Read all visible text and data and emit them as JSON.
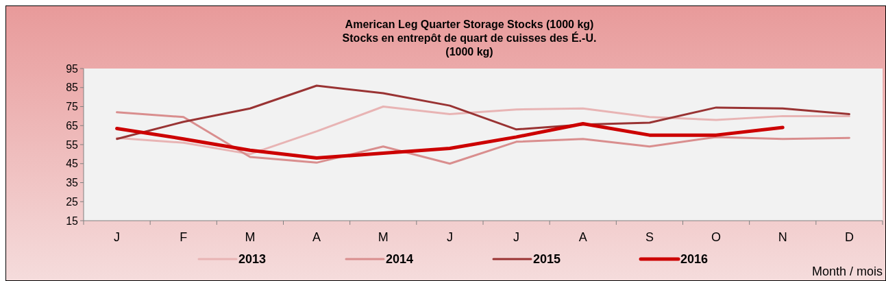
{
  "chart_data": {
    "type": "line",
    "title": "American Leg Quarter Storage Stocks (1000 kg)\nStocks en entrepôt de quart de cuisses des É.-U.\n(1000 kg)",
    "xlabel": "Month / mois",
    "categories": [
      "J",
      "F",
      "M",
      "A",
      "M",
      "J",
      "J",
      "A",
      "S",
      "O",
      "N",
      "D"
    ],
    "series": [
      {
        "name": "2013",
        "color": "#e8b4b4",
        "values": [
          58.5,
          56,
          50,
          62,
          75,
          71,
          73.5,
          74,
          69.5,
          68,
          70,
          70
        ]
      },
      {
        "name": "2014",
        "color": "#d98e8e",
        "values": [
          72,
          69.5,
          48.5,
          45.5,
          54,
          45,
          56.5,
          58,
          54,
          59,
          58,
          58.5
        ]
      },
      {
        "name": "2015",
        "color": "#993333",
        "values": [
          58,
          67,
          74,
          86,
          82,
          75.5,
          63,
          65.5,
          66.5,
          74.5,
          74,
          71
        ]
      },
      {
        "name": "2016",
        "color": "#cc0000",
        "values": [
          63.5,
          58,
          52,
          48,
          50.5,
          53,
          59,
          66,
          60,
          60,
          64,
          null
        ]
      }
    ],
    "ylim": [
      15,
      95
    ],
    "yticks": [
      15,
      25,
      35,
      45,
      55,
      65,
      75,
      85,
      95
    ],
    "grid": false,
    "legend": "bottom",
    "marker": "none",
    "line_style": "solid"
  }
}
